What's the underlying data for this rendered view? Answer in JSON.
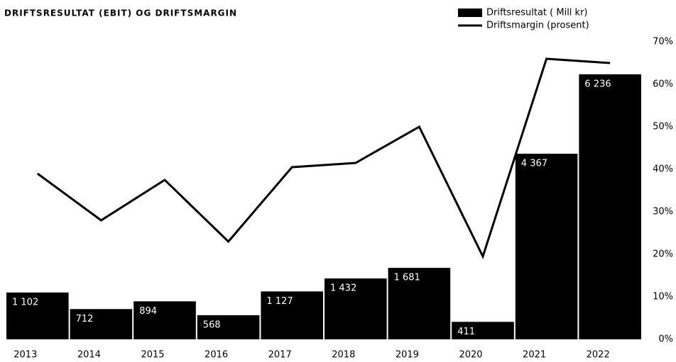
{
  "chart_data": {
    "type": "bar",
    "title": "DRIFTSRESULTAT (EBIT) OG DRIFTSMARGIN",
    "categories": [
      "2013",
      "2014",
      "2015",
      "2016",
      "2017",
      "2018",
      "2019",
      "2020",
      "2021",
      "2022"
    ],
    "series": [
      {
        "name": "Driftsresultat ( Mill kr)",
        "type": "bar",
        "color": "#000000",
        "values": [
          1102,
          712,
          894,
          568,
          1127,
          1432,
          1681,
          411,
          4367,
          6236
        ],
        "value_labels": [
          "1 102",
          "712",
          "894",
          "568",
          "1 127",
          "1 432",
          "1 681",
          "411",
          "4 367",
          "6 236"
        ]
      },
      {
        "name": "Driftsmargin (prosent)",
        "type": "line",
        "color": "#000000",
        "axis": "y2",
        "values": [
          39,
          28,
          37.5,
          23,
          40.5,
          41.5,
          50,
          19.5,
          66,
          65
        ]
      }
    ],
    "ylim": [
      0,
      7000
    ],
    "y2lim": [
      0,
      70
    ],
    "y2ticks": [
      {
        "value": 0,
        "label": "0%"
      },
      {
        "value": 10,
        "label": "10%"
      },
      {
        "value": 20,
        "label": "20%"
      },
      {
        "value": 30,
        "label": "30%"
      },
      {
        "value": 40,
        "label": "40%"
      },
      {
        "value": 50,
        "label": "50%"
      },
      {
        "value": 60,
        "label": "60%"
      },
      {
        "value": 70,
        "label": "70%"
      }
    ]
  }
}
